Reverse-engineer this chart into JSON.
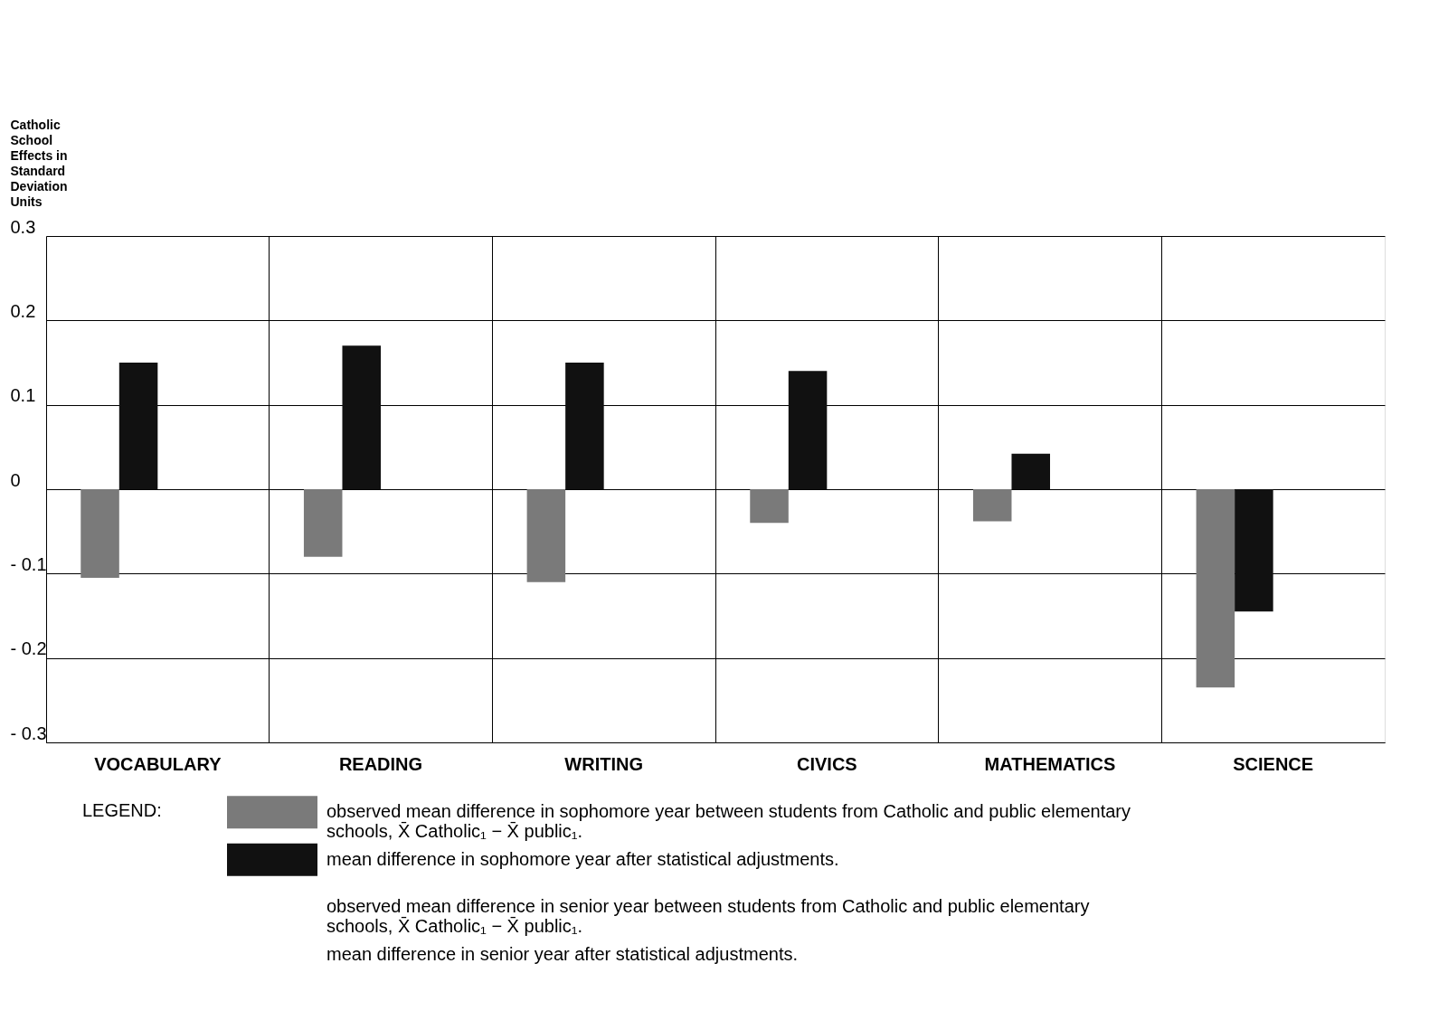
{
  "chart_data": {
    "type": "bar",
    "ylabel": "Catholic School Effects in Standard Deviation Units",
    "categories": [
      "VOCABULARY",
      "READING",
      "WRITING",
      "CIVICS",
      "MATHEMATICS",
      "SCIENCE"
    ],
    "series": [
      {
        "name": "observed mean difference in sophomore year between students from Catholic and public elementary schools, X̄ Catholic₁ − X̄ public₁.",
        "color": "#7a7a7a",
        "values": [
          -0.105,
          -0.08,
          -0.11,
          -0.04,
          -0.038,
          -0.235
        ]
      },
      {
        "name": "mean difference in sophomore year after statistical adjustments.",
        "color": "#111111",
        "values": [
          0.15,
          0.17,
          0.15,
          0.14,
          0.042,
          -0.145
        ]
      },
      {
        "name": "observed mean difference in senior year between students from Catholic and public elementary schools, X̄ Catholic₁ − X̄ public₁.",
        "values": [
          null,
          null,
          null,
          null,
          null,
          null
        ]
      },
      {
        "name": "mean difference in senior year after statistical adjustments.",
        "values": [
          null,
          null,
          null,
          null,
          null,
          null
        ]
      }
    ],
    "legend_title": "LEGEND:",
    "legend": "bottom",
    "ylim": [
      -0.3,
      0.3
    ],
    "yticks": [
      {
        "value": 0.3,
        "label": "0.3"
      },
      {
        "value": 0.2,
        "label": "0.2"
      },
      {
        "value": 0.1,
        "label": "0.1"
      },
      0,
      {
        "value": -0.1,
        "label": "- 0.1"
      },
      {
        "value": -0.2,
        "label": "- 0.2"
      },
      {
        "value": -0.3,
        "label": "- 0.3"
      }
    ],
    "grid": true
  }
}
